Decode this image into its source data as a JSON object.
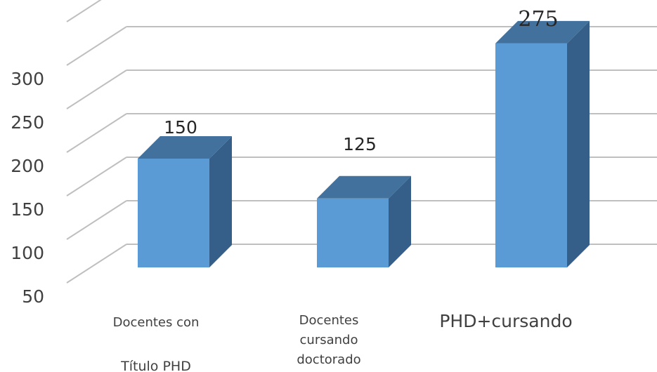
{
  "chart_data": {
    "type": "bar",
    "categories": [
      [
        "Docentes con",
        "Título PHD"
      ],
      [
        "Docentes",
        "cursando",
        "doctorado"
      ],
      [
        "PHD+cursando"
      ]
    ],
    "values": [
      150,
      125,
      275
    ],
    "data_labels": [
      "150",
      "125",
      "275"
    ],
    "y_ticks": [
      "50",
      "100",
      "150",
      "200",
      "250",
      "300"
    ],
    "ylim": [
      50,
      300
    ],
    "grid": true,
    "style": "3d",
    "colors": {
      "bar_front": "#5b9bd5",
      "bar_top": "#41719c",
      "bar_side": "#355f88",
      "gridline": "#bfbfbf"
    }
  }
}
